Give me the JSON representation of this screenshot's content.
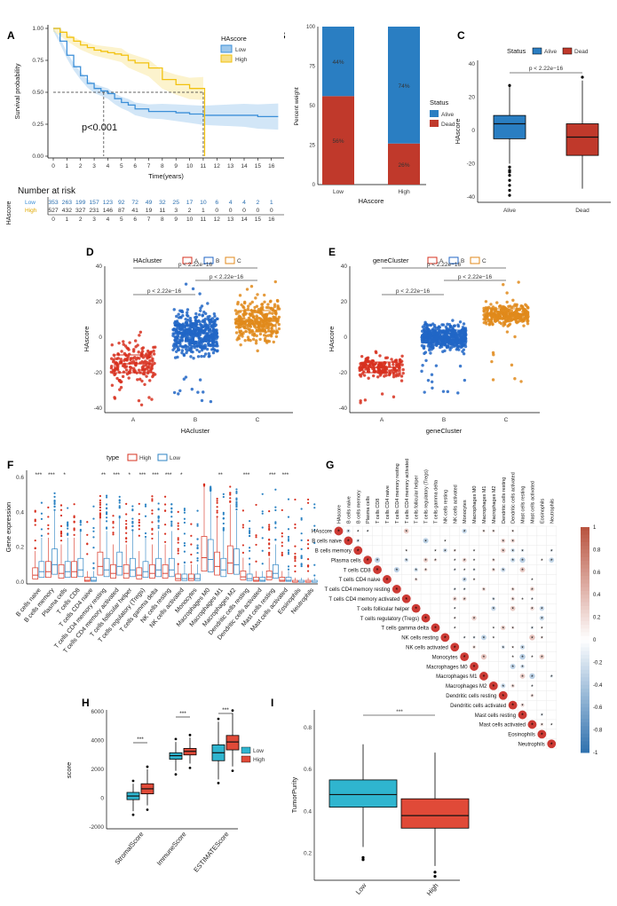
{
  "colors": {
    "low_km": "#3c8fd8",
    "high_km": "#f2c20f",
    "alive": "#2a7ec2",
    "dead": "#c0392b",
    "groupA": "#d7301f",
    "groupB": "#2166c6",
    "groupC": "#e0891b",
    "high_box": "#d7301f",
    "low_box": "#2c83c3",
    "low_box2": "#2fb5cf",
    "high_box2": "#e04a38"
  },
  "panel_letters": [
    "A",
    "B",
    "C",
    "D",
    "E",
    "F",
    "G",
    "H",
    "I"
  ],
  "chart_data": [
    {
      "id": "A",
      "type": "line",
      "title": "",
      "legend_title": "HAscore",
      "legend": [
        "Low",
        "High"
      ],
      "xlabel": "Time(years)",
      "ylabel": "Survival probability",
      "xlim": [
        0,
        16
      ],
      "ylim": [
        0,
        1
      ],
      "x_ticks": [
        "0",
        "1",
        "2",
        "3",
        "4",
        "5",
        "6",
        "7",
        "8",
        "9",
        "10",
        "11",
        "12",
        "13",
        "14",
        "15",
        "16"
      ],
      "y_ticks": [
        "0.00",
        "0.25",
        "0.50",
        "0.75",
        "1.00"
      ],
      "pvalue": "p<0.001",
      "median_low": 3.7,
      "median_high": 11.0,
      "series": [
        {
          "name": "Low",
          "x": [
            0,
            0.5,
            1,
            1.5,
            2,
            2.5,
            3,
            3.5,
            4,
            4.5,
            5,
            5.5,
            6,
            7,
            8,
            9,
            10,
            11,
            12,
            13,
            14,
            15,
            16.5
          ],
          "values": [
            1.0,
            0.9,
            0.79,
            0.7,
            0.63,
            0.57,
            0.53,
            0.51,
            0.49,
            0.45,
            0.42,
            0.4,
            0.37,
            0.35,
            0.35,
            0.34,
            0.33,
            0.32,
            0.32,
            0.32,
            0.32,
            0.31,
            0.31
          ]
        },
        {
          "name": "High",
          "x": [
            0,
            0.5,
            1,
            1.5,
            2,
            2.5,
            3,
            3.5,
            4,
            4.5,
            5,
            5.5,
            6,
            7,
            8,
            9,
            10,
            11,
            11.1
          ],
          "values": [
            1.0,
            0.97,
            0.93,
            0.9,
            0.87,
            0.85,
            0.83,
            0.82,
            0.81,
            0.8,
            0.79,
            0.75,
            0.73,
            0.69,
            0.6,
            0.56,
            0.53,
            0.53,
            0.0
          ]
        }
      ],
      "risk_table": {
        "title": "Number at risk",
        "ylabel": "HAscore",
        "rows": [
          {
            "name": "Low",
            "values": [
              "353",
              "263",
              "199",
              "157",
              "123",
              "92",
              "72",
              "49",
              "32",
              "25",
              "17",
              "10",
              "6",
              "4",
              "4",
              "2",
              "1"
            ]
          },
          {
            "name": "High",
            "values": [
              "527",
              "432",
              "327",
              "231",
              "146",
              "87",
              "41",
              "19",
              "11",
              "3",
              "2",
              "1",
              "0",
              "0",
              "0",
              "0",
              "0"
            ]
          }
        ]
      }
    },
    {
      "id": "B",
      "type": "bar",
      "categories": [
        "Low",
        "High"
      ],
      "series": [
        {
          "name": "Dead",
          "values": [
            56,
            26
          ]
        },
        {
          "name": "Alive",
          "values": [
            44,
            74
          ]
        }
      ],
      "data_labels": [
        "44%",
        "56%",
        "74%",
        "26%"
      ],
      "xlabel": "HAscore",
      "ylabel": "Percent weight",
      "ylim": [
        0,
        100
      ],
      "y_ticks": [
        "0",
        "25",
        "50",
        "75",
        "100"
      ],
      "legend_title": "Status",
      "legend": [
        "Alive",
        "Dead"
      ]
    },
    {
      "id": "C",
      "type": "box",
      "legend_title": "Status",
      "legend": [
        "Alive",
        "Dead"
      ],
      "categories": [
        "Alive",
        "Dead"
      ],
      "stats": [
        {
          "q1": -5,
          "median": 4,
          "q3": 9,
          "low": -20,
          "high": 28
        },
        {
          "q1": -15,
          "median": -4,
          "q3": 4,
          "low": -35,
          "high": 30
        }
      ],
      "ylabel": "HAscore",
      "ylim": [
        -40,
        40
      ],
      "y_ticks": [
        "-40",
        "-20",
        "0",
        "20",
        "40"
      ],
      "pvalue": "p < 2.22e−16"
    },
    {
      "id": "D",
      "type": "scatter",
      "legend_title": "HAcluster",
      "legend": [
        "A",
        "B",
        "C"
      ],
      "categories": [
        "A",
        "B",
        "C"
      ],
      "stats": [
        {
          "q1": -20,
          "median": -15,
          "q3": -10,
          "spread": [
            -40,
            5
          ]
        },
        {
          "q1": -5,
          "median": 2,
          "q3": 7,
          "spread": [
            -40,
            30
          ]
        },
        {
          "q1": 3,
          "median": 9,
          "q3": 15,
          "spread": [
            -12,
            32
          ]
        }
      ],
      "xlabel": "HAcluster",
      "ylabel": "HAscore",
      "ylim": [
        -40,
        40
      ],
      "y_ticks": [
        "-40",
        "-20",
        "0",
        "20",
        "40"
      ],
      "comparisons": [
        "p < 2.22e−16",
        "p < 2.22e−16",
        "p < 2.22e−16"
      ]
    },
    {
      "id": "E",
      "type": "scatter",
      "legend_title": "geneCluster",
      "legend": [
        "A",
        "B",
        "C"
      ],
      "categories": [
        "A",
        "B",
        "C"
      ],
      "stats": [
        {
          "q1": -20,
          "median": -17,
          "q3": -14,
          "spread": [
            -40,
            -8
          ]
        },
        {
          "q1": -3,
          "median": 0,
          "q3": 4,
          "spread": [
            -40,
            10
          ]
        },
        {
          "q1": 10,
          "median": 13,
          "q3": 16,
          "spread": [
            -26,
            33
          ]
        }
      ],
      "xlabel": "geneCluster",
      "ylabel": "HAscore",
      "ylim": [
        -40,
        40
      ],
      "y_ticks": [
        "-40",
        "-20",
        "0",
        "20",
        "40"
      ],
      "comparisons": [
        "p < 2.22e−16",
        "p < 2.22e−16",
        "p < 2.22e−16"
      ]
    },
    {
      "id": "F",
      "type": "box",
      "legend_title": "type",
      "legend": [
        "High",
        "Low"
      ],
      "ylabel": "Gene expression",
      "ylim": [
        0,
        0.6
      ],
      "y_ticks": [
        "0.0",
        "0.2",
        "0.4",
        "0.6"
      ],
      "categories": [
        "B cells naive",
        "B cells memory",
        "Plasma cells",
        "T cells CD8",
        "T cells CD4 naive",
        "T cells CD4 memory resting",
        "T cells CD4 memory activated",
        "T cells follicular helper",
        "T cells regulatory (Tregs)",
        "T cells gamma delta",
        "NK cells resting",
        "NK cells activated",
        "Monocytes",
        "Macrophages M0",
        "Macrophages M1",
        "Macrophages M2",
        "Dendritic cells resting",
        "Dendritic cells activated",
        "Mast cells resting",
        "Mast cells activated",
        "Eosinophils",
        "Neutrophils"
      ],
      "significance": [
        "***",
        "***",
        "*",
        "",
        "",
        "**",
        "***",
        "*",
        "***",
        "***",
        "***",
        "*",
        "",
        "",
        "**",
        "",
        "***",
        "",
        "***",
        "***",
        "",
        ""
      ],
      "median_high": [
        0.04,
        0.06,
        0.05,
        0.06,
        0.01,
        0.09,
        0.05,
        0.05,
        0.04,
        0.05,
        0.05,
        0.02,
        0.02,
        0.14,
        0.09,
        0.11,
        0.03,
        0.01,
        0.03,
        0.01,
        0.0,
        0.0
      ],
      "median_low": [
        0.06,
        0.1,
        0.06,
        0.07,
        0.01,
        0.07,
        0.09,
        0.07,
        0.06,
        0.07,
        0.07,
        0.02,
        0.02,
        0.13,
        0.07,
        0.1,
        0.02,
        0.01,
        0.05,
        0.01,
        0.0,
        0.0
      ]
    },
    {
      "id": "G",
      "type": "heatmap",
      "labels": [
        "HAscore",
        "B cells naive",
        "B cells memory",
        "Plasma cells",
        "T cells CD8",
        "T cells CD4 naive",
        "T cells CD4 memory resting",
        "T cells CD4 memory activated",
        "T cells follicular helper",
        "T cells regulatory (Tregs)",
        "T cells gamma delta",
        "NK cells resting",
        "NK cells activated",
        "Monocytes",
        "Macrophages M0",
        "Macrophages M1",
        "Macrophages M2",
        "Dendritic cells resting",
        "Dendritic cells activated",
        "Mast cells resting",
        "Mast cells activated",
        "Eosinophils",
        "Neutrophils"
      ],
      "colorbar_ticks": [
        "1",
        "0.8",
        "0.6",
        "0.4",
        "0.2",
        "0",
        "-0.2",
        "-0.4",
        "-0.6",
        "-0.8",
        "-1"
      ],
      "colorbar_range": [
        -1,
        1
      ]
    },
    {
      "id": "H",
      "type": "box",
      "legend": [
        "Low",
        "High"
      ],
      "categories": [
        "StromalScore",
        "ImmuneScore",
        "ESTIMATEScore"
      ],
      "significance": [
        "***",
        "***",
        "***"
      ],
      "stats_low": [
        {
          "q1": -100,
          "median": 150,
          "q3": 400,
          "low": -900,
          "high": 1000
        },
        {
          "q1": 2700,
          "median": 2950,
          "q3": 3150,
          "low": 1900,
          "high": 3900
        },
        {
          "q1": 2600,
          "median": 3150,
          "q3": 3700,
          "low": 1300,
          "high": 5300
        }
      ],
      "stats_high": [
        {
          "q1": 300,
          "median": 650,
          "q3": 1000,
          "low": -500,
          "high": 2000
        },
        {
          "q1": 3000,
          "median": 3250,
          "q3": 3450,
          "low": 2400,
          "high": 4200
        },
        {
          "q1": 3350,
          "median": 3900,
          "q3": 4350,
          "low": 2200,
          "high": 5900
        }
      ],
      "ylabel": "score",
      "ylim": [
        -2000,
        6000
      ],
      "y_ticks": [
        "-2000",
        "0",
        "2000",
        "4000",
        "6000"
      ]
    },
    {
      "id": "I",
      "type": "box",
      "categories": [
        "Low",
        "High"
      ],
      "significance": "***",
      "stats": [
        {
          "q1": 0.42,
          "median": 0.48,
          "q3": 0.55,
          "low": 0.23,
          "high": 0.72,
          "outliers": [
            0.18,
            0.17
          ]
        },
        {
          "q1": 0.32,
          "median": 0.38,
          "q3": 0.46,
          "low": 0.14,
          "high": 0.68,
          "outliers": [
            0.11,
            0.09
          ]
        }
      ],
      "ylabel": "TumorPurity",
      "ylim": [
        0.08,
        0.85
      ],
      "y_ticks": [
        "0.2",
        "0.4",
        "0.6",
        "0.8"
      ]
    }
  ]
}
